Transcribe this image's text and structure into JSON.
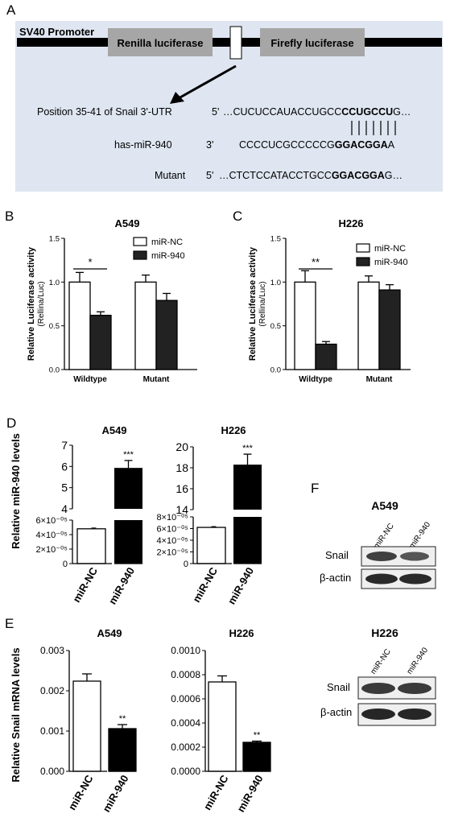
{
  "panelA": {
    "letter": "A",
    "promoter": "SV40 Promoter",
    "renilla": "Renilla luciferase",
    "firefly": "Firefly luciferase",
    "row1_label": "Position 35-41 of Snail 3'-UTR",
    "row1_prime": "5'",
    "row1_pre": "…CUCUCCAUACCUGCC",
    "row1_bold": "CCUGCCU",
    "row1_post": "G…",
    "row2_label": "has-miR-940",
    "row2_prime": "3'",
    "row2_pre": "CCCCUCGCCCCCG",
    "row2_bold": "GGACGGA",
    "row2_post": "A",
    "row3_label": "Mutant",
    "row3_prime": "5'",
    "row3_pre": "…CTCTCCATACCTGCC",
    "row3_bold": "GGACGGA",
    "row3_post": "G…"
  },
  "panelD": {
    "letter": "D",
    "ylabel": "Relative miR-940 levels"
  },
  "panelE": {
    "letter": "E",
    "ylabel": "Relative Snail mRNA levels"
  },
  "panelF": {
    "letter": "F",
    "blots": [
      {
        "title": "A549",
        "lane1": "miR-NC",
        "lane2": "miR-940",
        "row1": "Snail",
        "row2": "β-actin"
      },
      {
        "title": "H226",
        "lane1": "miR-NC",
        "lane2": "miR-940",
        "row1": "Snail",
        "row2": "β-actin"
      }
    ]
  },
  "chart_data": [
    {
      "panel": "B",
      "type": "bar",
      "title": "A549",
      "ylabel": "Relative Luciferase activity",
      "ylabel2": "(Rellina/Luc)",
      "categories": [
        "Wildtype",
        "Mutant"
      ],
      "ylim": [
        0,
        1.5
      ],
      "yticks": [
        "0.0",
        "0.5",
        "1.0",
        "1.5"
      ],
      "series": [
        {
          "name": "miR-NC",
          "color": "#ffffff",
          "values": [
            1.0,
            1.0
          ],
          "errors": [
            0.11,
            0.08
          ]
        },
        {
          "name": "miR-940",
          "color": "#222222",
          "values": [
            0.62,
            0.79
          ],
          "errors": [
            0.04,
            0.08
          ]
        }
      ],
      "significance": "*",
      "legend": "top-right"
    },
    {
      "panel": "C",
      "type": "bar",
      "title": "H226",
      "ylabel": "Relative Luciferase activity",
      "ylabel2": "(Rellina/Luc)",
      "categories": [
        "Wildtype",
        "Mutant"
      ],
      "ylim": [
        0,
        1.5
      ],
      "yticks": [
        "0.0",
        "0.5",
        "1.0",
        "1.5"
      ],
      "series": [
        {
          "name": "miR-NC",
          "color": "#ffffff",
          "values": [
            1.0,
            1.0
          ],
          "errors": [
            0.13,
            0.07
          ]
        },
        {
          "name": "miR-940",
          "color": "#222222",
          "values": [
            0.29,
            0.91
          ],
          "errors": [
            0.03,
            0.06
          ]
        }
      ],
      "significance": "**",
      "legend": "top-right"
    },
    {
      "panel": "D",
      "type": "bar",
      "title": "A549",
      "categories": [
        "miR-NC",
        "miR-940"
      ],
      "values": [
        4.8e-05,
        5.93
      ],
      "errors": [
        1e-06,
        0.35
      ],
      "colors": [
        "#ffffff",
        "#000000"
      ],
      "broken_axis": {
        "upper_ylim": [
          4,
          7
        ],
        "upper_ticks": [
          "4",
          "5",
          "6",
          "7"
        ],
        "lower_ylim": [
          0,
          6e-05
        ],
        "lower_ticks": [
          "0",
          "2×10⁻⁰⁵",
          "4×10⁻⁰⁵",
          "6×10⁻⁰⁵"
        ]
      },
      "significance": "***"
    },
    {
      "panel": "D",
      "type": "bar",
      "title": "H226",
      "categories": [
        "miR-NC",
        "miR-940"
      ],
      "values": [
        6.2e-05,
        18.3
      ],
      "errors": [
        1e-06,
        1.0
      ],
      "colors": [
        "#ffffff",
        "#000000"
      ],
      "broken_axis": {
        "upper_ylim": [
          14,
          20
        ],
        "upper_ticks": [
          "14",
          "16",
          "18",
          "20"
        ],
        "lower_ylim": [
          0,
          8e-05
        ],
        "lower_ticks": [
          "0",
          "2×10⁻⁰⁵",
          "4×10⁻⁰⁵",
          "6×10⁻⁰⁵",
          "8×10⁻⁰⁵"
        ]
      },
      "significance": "***"
    },
    {
      "panel": "E",
      "type": "bar",
      "title": "A549",
      "categories": [
        "miR-NC",
        "miR-940"
      ],
      "values": [
        0.00224,
        0.00106
      ],
      "errors": [
        0.00018,
        0.0001
      ],
      "colors": [
        "#ffffff",
        "#000000"
      ],
      "ylim": [
        0,
        0.003
      ],
      "yticks": [
        "0.000",
        "0.001",
        "0.002",
        "0.003"
      ],
      "significance": "**"
    },
    {
      "panel": "E",
      "type": "bar",
      "title": "H226",
      "categories": [
        "miR-NC",
        "miR-940"
      ],
      "values": [
        0.00074,
        0.00024
      ],
      "errors": [
        5e-05,
        1e-05
      ],
      "colors": [
        "#ffffff",
        "#000000"
      ],
      "ylim": [
        0,
        0.001
      ],
      "yticks": [
        "0.0000",
        "0.0002",
        "0.0004",
        "0.0006",
        "0.0008",
        "0.0010"
      ],
      "significance": "**"
    }
  ],
  "panelB_letter": "B",
  "panelC_letter": "C"
}
